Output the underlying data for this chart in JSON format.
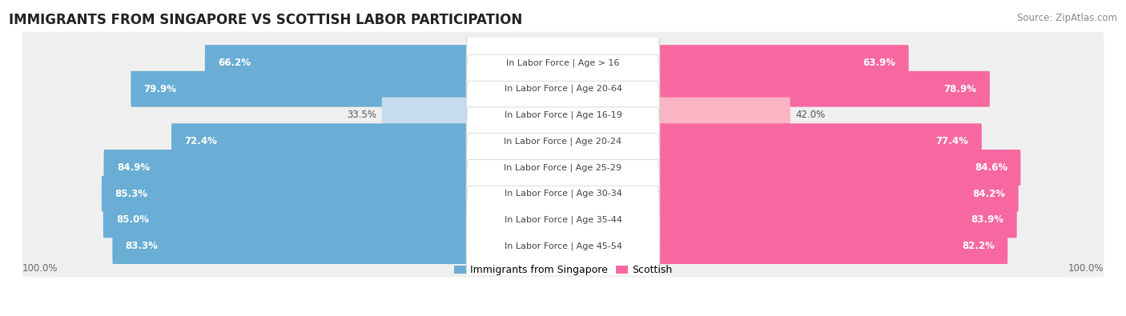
{
  "title": "IMMIGRANTS FROM SINGAPORE VS SCOTTISH LABOR PARTICIPATION",
  "source": "Source: ZipAtlas.com",
  "categories": [
    "In Labor Force | Age > 16",
    "In Labor Force | Age 20-64",
    "In Labor Force | Age 16-19",
    "In Labor Force | Age 20-24",
    "In Labor Force | Age 25-29",
    "In Labor Force | Age 30-34",
    "In Labor Force | Age 35-44",
    "In Labor Force | Age 45-54"
  ],
  "singapore_values": [
    66.2,
    79.9,
    33.5,
    72.4,
    84.9,
    85.3,
    85.0,
    83.3
  ],
  "scottish_values": [
    63.9,
    78.9,
    42.0,
    77.4,
    84.6,
    84.2,
    83.9,
    82.2
  ],
  "singapore_color": "#6aadd5",
  "scottish_color": "#f768a1",
  "singapore_color_light": "#c6dbef",
  "scottish_color_light": "#fbb4c4",
  "row_bg_color": "#efefef",
  "max_value": 100.0,
  "legend_singapore": "Immigrants from Singapore",
  "legend_scottish": "Scottish",
  "title_fontsize": 12,
  "source_fontsize": 8.5,
  "bar_label_fontsize": 8.5,
  "category_fontsize": 8.0,
  "label_threshold": 50
}
